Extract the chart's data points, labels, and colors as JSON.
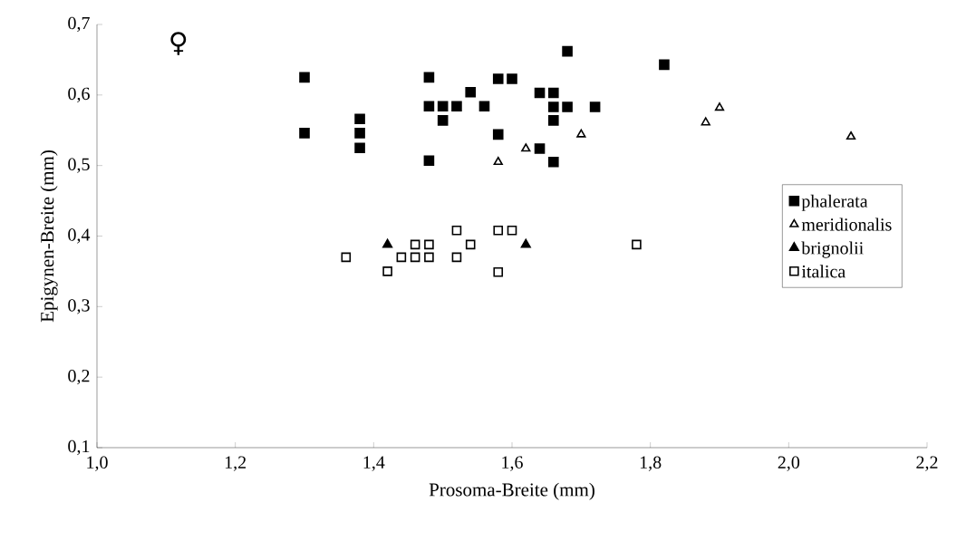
{
  "chart_data": {
    "type": "scatter",
    "xlabel": "Prosoma-Breite (mm)",
    "ylabel": "Epigynen-Breite (mm)",
    "annotations": [
      "♀"
    ],
    "xlim": [
      1.0,
      2.2
    ],
    "ylim": [
      0.1,
      0.7
    ],
    "xticks": [
      {
        "value": 1.0,
        "label": "1,0"
      },
      {
        "value": 1.2,
        "label": "1,2"
      },
      {
        "value": 1.4,
        "label": "1,4"
      },
      {
        "value": 1.6,
        "label": "1,6"
      },
      {
        "value": 1.8,
        "label": "1,8"
      },
      {
        "value": 2.0,
        "label": "2,0"
      },
      {
        "value": 2.2,
        "label": "2,2"
      }
    ],
    "yticks": [
      {
        "value": 0.1,
        "label": "0,1"
      },
      {
        "value": 0.2,
        "label": "0,2"
      },
      {
        "value": 0.3,
        "label": "0,3"
      },
      {
        "value": 0.4,
        "label": "0,4"
      },
      {
        "value": 0.5,
        "label": "0,5"
      },
      {
        "value": 0.6,
        "label": "0,6"
      },
      {
        "value": 0.7,
        "label": "0,7"
      }
    ],
    "grid": false,
    "legend": "right",
    "series": [
      {
        "name": "phalerata",
        "color": "#000000",
        "marker": "square",
        "x": [
          1.3,
          1.3,
          1.38,
          1.38,
          1.38,
          1.48,
          1.48,
          1.48,
          1.5,
          1.5,
          1.52,
          1.54,
          1.56,
          1.58,
          1.58,
          1.6,
          1.64,
          1.66,
          1.66,
          1.66,
          1.66,
          1.64,
          1.68,
          1.68,
          1.72,
          1.82
        ],
        "values": [
          0.625,
          0.546,
          0.566,
          0.546,
          0.525,
          0.625,
          0.584,
          0.507,
          0.584,
          0.564,
          0.584,
          0.604,
          0.584,
          0.623,
          0.544,
          0.623,
          0.603,
          0.603,
          0.583,
          0.564,
          0.505,
          0.524,
          0.583,
          0.662,
          0.583,
          0.643
        ]
      },
      {
        "name": "meridionalis",
        "color": "#000000",
        "marker": "triangle",
        "x": [
          1.58,
          1.62,
          1.7,
          1.88,
          1.9,
          2.09
        ],
        "values": [
          0.505,
          0.524,
          0.544,
          0.561,
          0.582,
          0.541
        ]
      },
      {
        "name": "brignolii",
        "color": "#000000",
        "marker": "triangle",
        "x": [
          1.42,
          1.62
        ],
        "values": [
          0.388,
          0.388
        ]
      },
      {
        "name": "italica",
        "color": "#000000",
        "marker": "square",
        "x": [
          1.36,
          1.42,
          1.44,
          1.46,
          1.46,
          1.48,
          1.48,
          1.52,
          1.52,
          1.54,
          1.58,
          1.6,
          1.58,
          1.78
        ],
        "values": [
          0.37,
          0.35,
          0.37,
          0.388,
          0.37,
          0.388,
          0.37,
          0.408,
          0.37,
          0.388,
          0.408,
          0.408,
          0.349,
          0.388
        ]
      }
    ]
  }
}
